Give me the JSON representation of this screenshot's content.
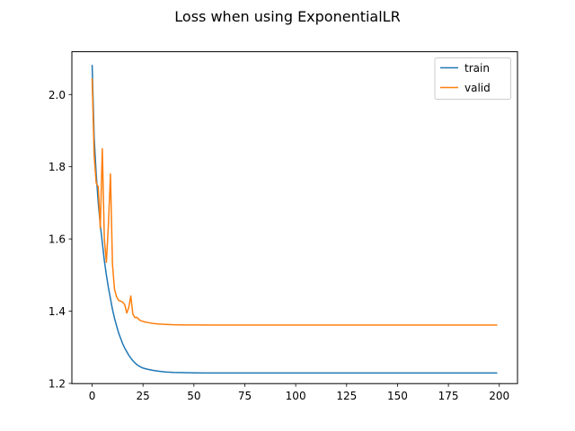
{
  "chart_data": {
    "type": "line",
    "title": "Loss when using ExponentialLR",
    "xlabel": "",
    "ylabel": "",
    "xlim": [
      -9.95,
      208.95
    ],
    "ylim": [
      1.1995,
      2.1185
    ],
    "xticks": [
      0,
      25,
      50,
      75,
      100,
      125,
      150,
      175,
      200
    ],
    "yticks": [
      1.2,
      1.4,
      1.6,
      1.8,
      2.0
    ],
    "ytick_labels": [
      "1.2",
      "1.4",
      "1.6",
      "1.8",
      "2.0"
    ],
    "grid": false,
    "legend_position": "top-right",
    "colors": {
      "train": "#1f77b4",
      "valid": "#ff7f0e"
    },
    "series": [
      {
        "name": "train",
        "color": "#1f77b4",
        "x": [
          0,
          1,
          2,
          3,
          4,
          5,
          6,
          7,
          8,
          9,
          10,
          11,
          12,
          13,
          14,
          15,
          16,
          17,
          18,
          19,
          20,
          21,
          22,
          23,
          24,
          25,
          27,
          30,
          33,
          36,
          40,
          45,
          50,
          55,
          60,
          70,
          80,
          100,
          125,
          150,
          175,
          199
        ],
        "y": [
          2.082,
          1.88,
          1.78,
          1.7,
          1.64,
          1.59,
          1.54,
          1.5,
          1.465,
          1.435,
          1.405,
          1.38,
          1.36,
          1.34,
          1.325,
          1.31,
          1.298,
          1.288,
          1.278,
          1.27,
          1.263,
          1.257,
          1.252,
          1.248,
          1.245,
          1.2425,
          1.2395,
          1.236,
          1.2335,
          1.2318,
          1.2305,
          1.2297,
          1.2292,
          1.229,
          1.2289,
          1.2288,
          1.2288,
          1.2288,
          1.2288,
          1.2288,
          1.2288,
          1.2288
        ]
      },
      {
        "name": "valid",
        "color": "#ff7f0e",
        "x": [
          0,
          1,
          2,
          3,
          4,
          5,
          6,
          7,
          8,
          9,
          10,
          11,
          12,
          13,
          14,
          15,
          16,
          17,
          18,
          19,
          20,
          21,
          22,
          23,
          24,
          25,
          26,
          28,
          30,
          33,
          36,
          40,
          45,
          50,
          60,
          80,
          100,
          125,
          150,
          175,
          199
        ],
        "y": [
          2.045,
          1.83,
          1.755,
          1.745,
          1.63,
          1.85,
          1.6,
          1.535,
          1.64,
          1.78,
          1.53,
          1.46,
          1.44,
          1.43,
          1.428,
          1.425,
          1.418,
          1.395,
          1.41,
          1.442,
          1.392,
          1.382,
          1.383,
          1.377,
          1.373,
          1.372,
          1.37,
          1.368,
          1.366,
          1.3645,
          1.3635,
          1.3625,
          1.362,
          1.3618,
          1.3616,
          1.3615,
          1.3615,
          1.3615,
          1.3615,
          1.3615,
          1.3615
        ]
      }
    ]
  }
}
